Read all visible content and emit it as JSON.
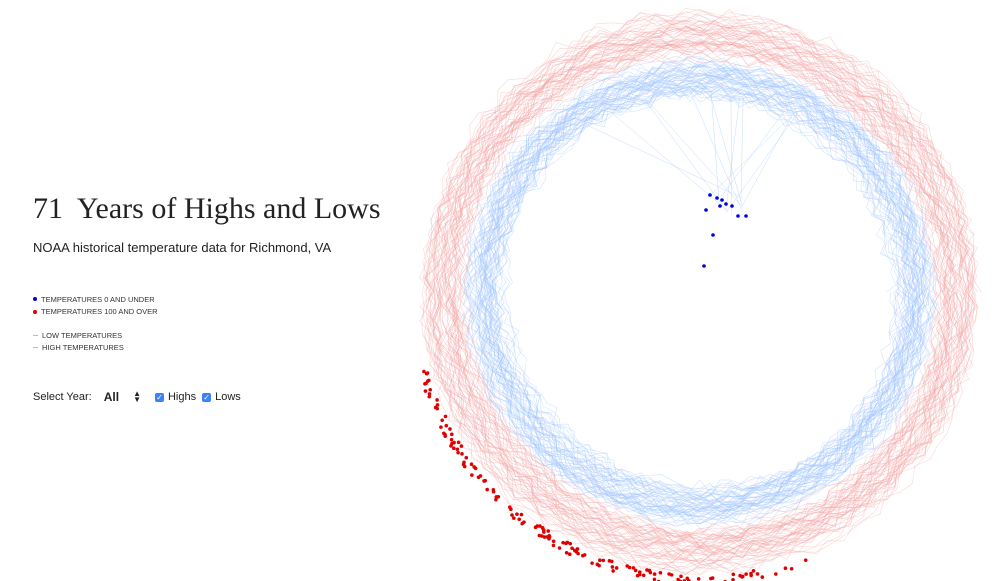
{
  "header": {
    "title": "71  Years of Highs and Lows",
    "subtitle": "NOAA historical temperature data for Richmond, VA"
  },
  "legend": {
    "items": [
      {
        "label": "TEMPERATURES 0 AND UNDER",
        "color": "#0000dd",
        "shape": "dot"
      },
      {
        "label": "TEMPERATURES 100 AND OVER",
        "color": "#e00000",
        "shape": "dot"
      },
      {
        "label": "LOW TEMPERATURES",
        "color": "#9ec4ff",
        "shape": "line"
      },
      {
        "label": "HIGH TEMPERATURES",
        "color": "#f3a3a3",
        "shape": "line"
      }
    ]
  },
  "controls": {
    "select_label": "Select Year:",
    "select_value": "All",
    "checkboxes": [
      {
        "label": "Highs",
        "checked": true
      },
      {
        "label": "Lows",
        "checked": true
      }
    ]
  }
}
